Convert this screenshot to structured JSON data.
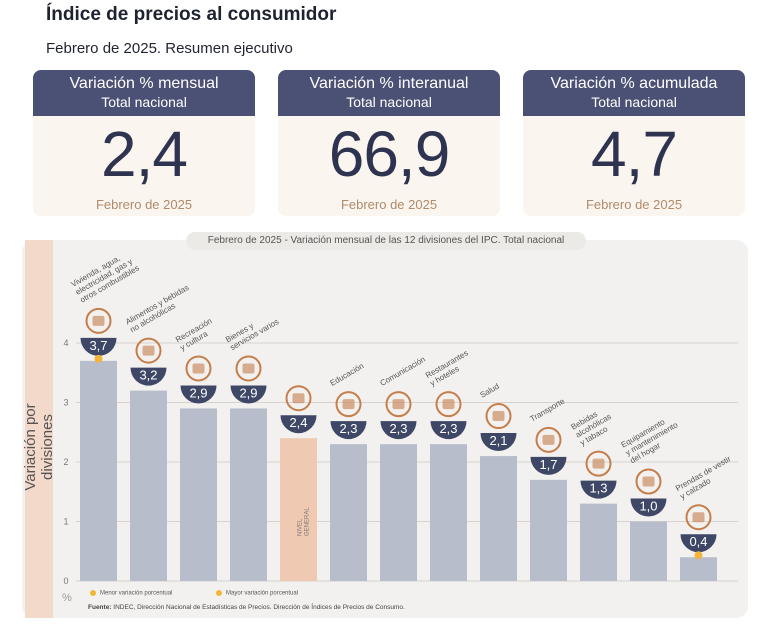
{
  "header": {
    "title": "Índice de precios al consumidor",
    "subtitle": "Febrero de 2025. Resumen ejecutivo"
  },
  "cards": [
    {
      "line1": "Variación % mensual",
      "line2": "Total nacional",
      "value": "2,4",
      "period": "Febrero de 2025"
    },
    {
      "line1": "Variación % interanual",
      "line2": "Total nacional",
      "value": "66,9",
      "period": "Febrero de 2025"
    },
    {
      "line1": "Variación % acumulada",
      "line2": "Total nacional",
      "value": "4,7",
      "period": "Febrero de 2025"
    }
  ],
  "colors": {
    "bar": "#b8bdcc",
    "bar_general": "#f0c9b3",
    "bubble": "#3f4767",
    "accent_dot": "#f2b53a",
    "icon": "#c47e4c",
    "card_head": "#4a5174"
  },
  "chart_data": {
    "type": "bar",
    "title": "Febrero de 2025 - Variación mensual de las 12 divisiones del IPC. Total nacional",
    "ylabel": "Variación por divisiones",
    "yunit": "%",
    "ylim": [
      0,
      4
    ],
    "yticks": [
      "0",
      "1",
      "2",
      "3",
      "4"
    ],
    "grid": true,
    "categories": [
      "Vivienda, agua, electricidad, gas y otros combustibles",
      "Alimentos y bebidas no alcohólicas",
      "Recreación y cultura",
      "Bienes y servicios varios",
      "Nivel general",
      "Educación",
      "Comunicación",
      "Restaurantes y hoteles",
      "Salud",
      "Transporte",
      "Bebidas alcohólicas y tabaco",
      "Equipamiento y mantenimiento del hogar",
      "Prendas de vestir y calzado"
    ],
    "values": [
      3.7,
      3.2,
      2.9,
      2.9,
      2.4,
      2.3,
      2.3,
      2.3,
      2.1,
      1.7,
      1.3,
      1.0,
      0.4
    ],
    "value_labels": [
      "3,7",
      "3,2",
      "2,9",
      "2,9",
      "2,4",
      "2,3",
      "2,3",
      "2,3",
      "2,1",
      "1,7",
      "1,3",
      "1,0",
      "0,4"
    ],
    "category_labels": [
      [
        "Vivienda, agua,",
        "electricidad, gas y",
        "otros combustibles"
      ],
      [
        "Alimentos y bebidas",
        "no alcohólicas"
      ],
      [
        "Recreación",
        "y cultura"
      ],
      [
        "Bienes y",
        "servicios varios"
      ],
      [
        "NIVEL",
        "GENERAL"
      ],
      [
        "Educación"
      ],
      [
        "Comunicación"
      ],
      [
        "Restaurantes",
        "y hoteles"
      ],
      [
        "Salud"
      ],
      [
        "Transporte"
      ],
      [
        "Bebidas",
        "alcohólicas",
        "y tabaco"
      ],
      [
        "Equipamiento",
        "y mantenimiento",
        "del hogar"
      ],
      [
        "Prendas de vestir",
        "y calzado"
      ]
    ],
    "general_index": 4,
    "highlight_max_index": 0,
    "highlight_min_index": 12,
    "icons": [
      "light-bulb-icon",
      "food-icon",
      "beach-umbrella-icon",
      "scissors-brush-icon",
      "shopping-bag-icon",
      "notebook-icon",
      "phone-icon",
      "restaurant-icon",
      "health-cross-icon",
      "bus-icon",
      "drink-icon",
      "home-appliance-icon",
      "clothing-icon"
    ],
    "legend": [
      {
        "label": "Menor variación porcentual"
      },
      {
        "label": "Mayor variación porcentual"
      }
    ]
  },
  "source": {
    "label": "Fuente:",
    "text": "INDEC, Dirección Nacional de Estadísticas de Precios. Dirección de Índices de Precios de Consumo."
  }
}
